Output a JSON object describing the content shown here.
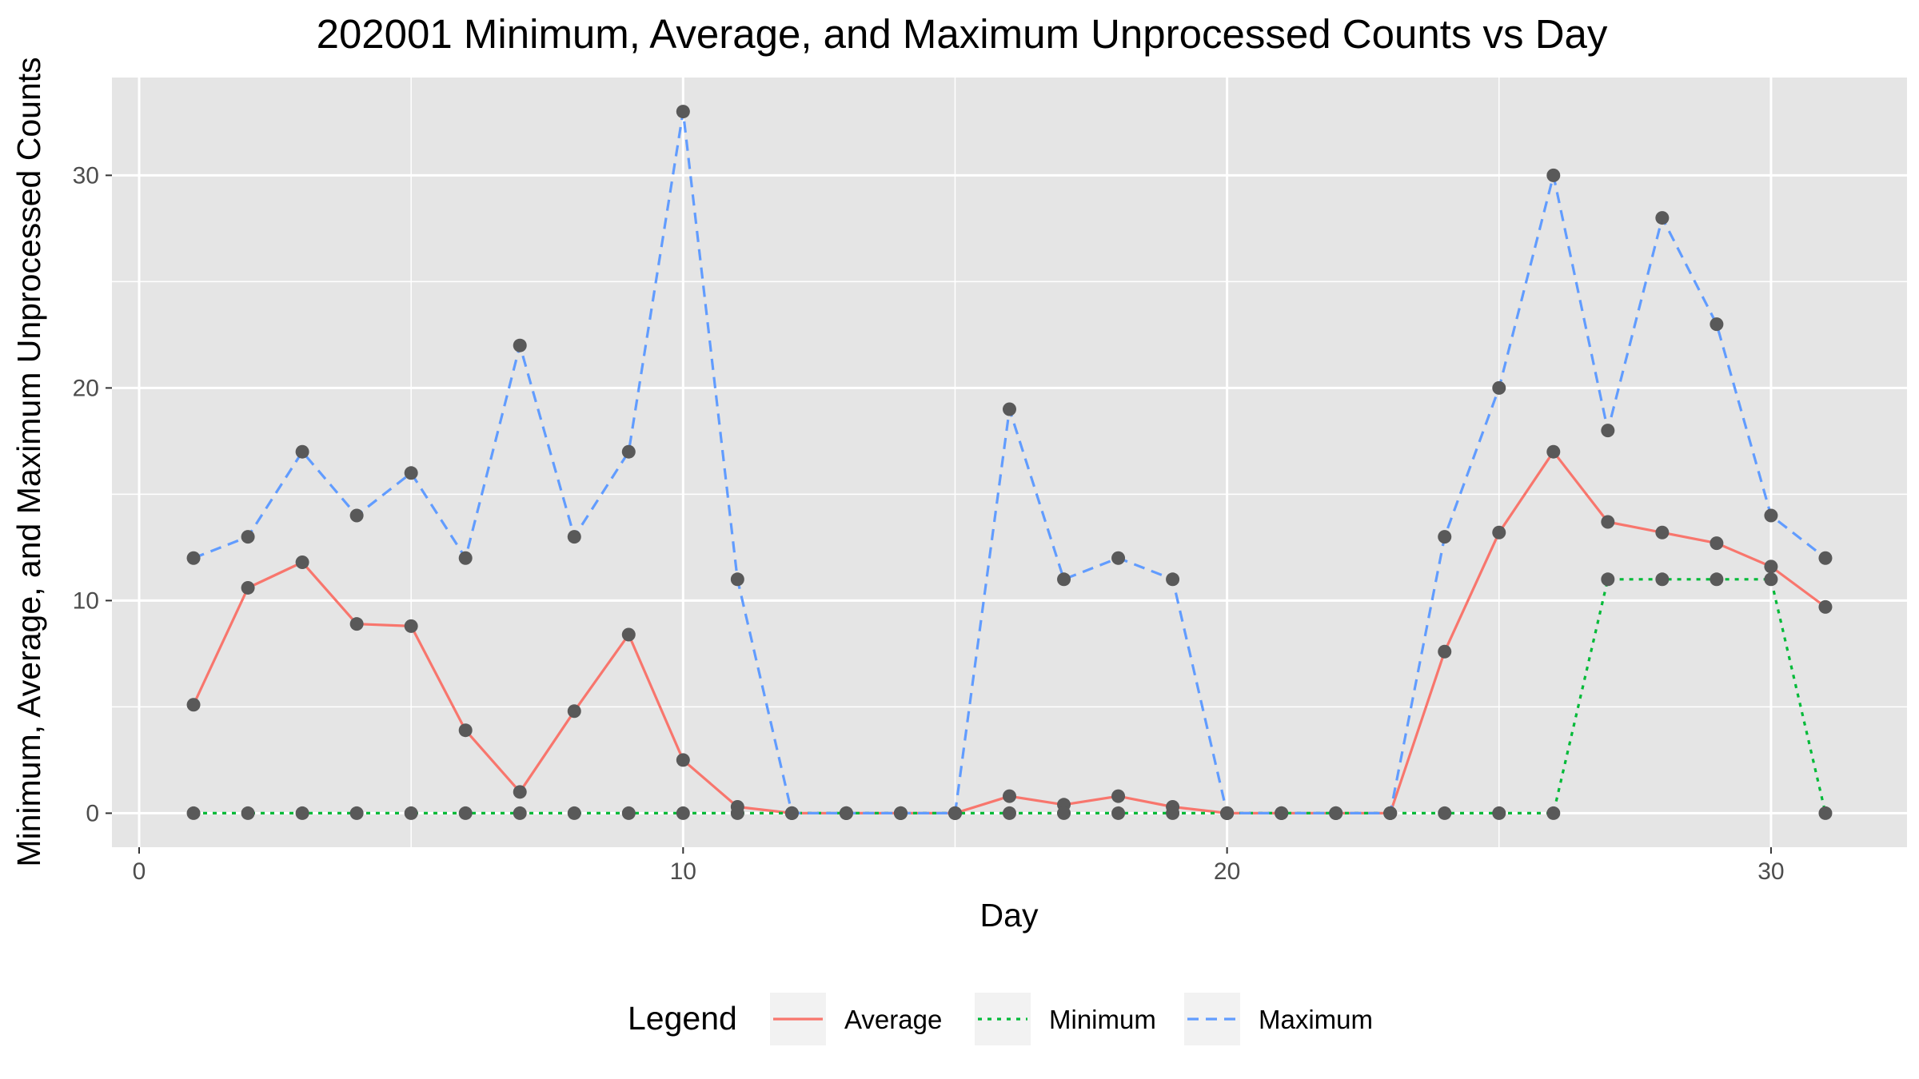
{
  "chart_data": {
    "type": "line",
    "title": "202001 Minimum, Average, and Maximum Unprocessed Counts vs Day",
    "xlabel": "Day",
    "ylabel": "Minimum, Average, and Maximum Unprocessed Counts",
    "xlim": [
      -0.5,
      32.5
    ],
    "ylim": [
      -1.6,
      34.6
    ],
    "x_ticks": [
      0,
      10,
      20,
      30
    ],
    "y_ticks": [
      0,
      10,
      20,
      30
    ],
    "x_tick_labels": [
      "0",
      "10",
      "20",
      "30"
    ],
    "y_tick_labels": [
      "0",
      "10",
      "20",
      "30"
    ],
    "grid": true,
    "legend_position": "bottom",
    "legend_title": "Legend",
    "x": [
      1,
      2,
      3,
      4,
      5,
      6,
      7,
      8,
      9,
      10,
      11,
      12,
      13,
      14,
      15,
      16,
      17,
      18,
      19,
      20,
      21,
      22,
      23,
      24,
      25,
      26,
      27,
      28,
      29,
      30,
      31
    ],
    "series": [
      {
        "name": "Average",
        "color": "#f8766d",
        "dash": "solid",
        "values": [
          5.1,
          10.6,
          11.8,
          8.9,
          8.8,
          3.9,
          1.0,
          4.8,
          8.4,
          2.5,
          0.3,
          0,
          0,
          0,
          0,
          0.8,
          0.4,
          0.8,
          0.3,
          0,
          0,
          0,
          0,
          7.6,
          13.2,
          17.0,
          13.7,
          13.2,
          12.7,
          11.6,
          9.7
        ]
      },
      {
        "name": "Minimum",
        "color": "#00ba38",
        "dash": "dotted",
        "values": [
          0,
          0,
          0,
          0,
          0,
          0,
          0,
          0,
          0,
          0,
          0,
          0,
          0,
          0,
          0,
          0,
          0,
          0,
          0,
          0,
          0,
          0,
          0,
          0,
          0,
          0,
          11,
          11,
          11,
          11,
          0
        ]
      },
      {
        "name": "Maximum",
        "color": "#619cff",
        "dash": "dashed",
        "values": [
          12,
          13,
          17,
          14,
          16,
          12,
          22,
          13,
          17,
          33,
          11,
          0,
          0,
          0,
          0,
          19,
          11,
          12,
          11,
          0,
          0,
          0,
          0,
          13,
          20,
          30,
          18,
          28,
          23,
          14,
          12
        ]
      }
    ],
    "point_color": "#595959",
    "panel_color": "#e5e5e5",
    "grid_color": "#ffffff"
  }
}
